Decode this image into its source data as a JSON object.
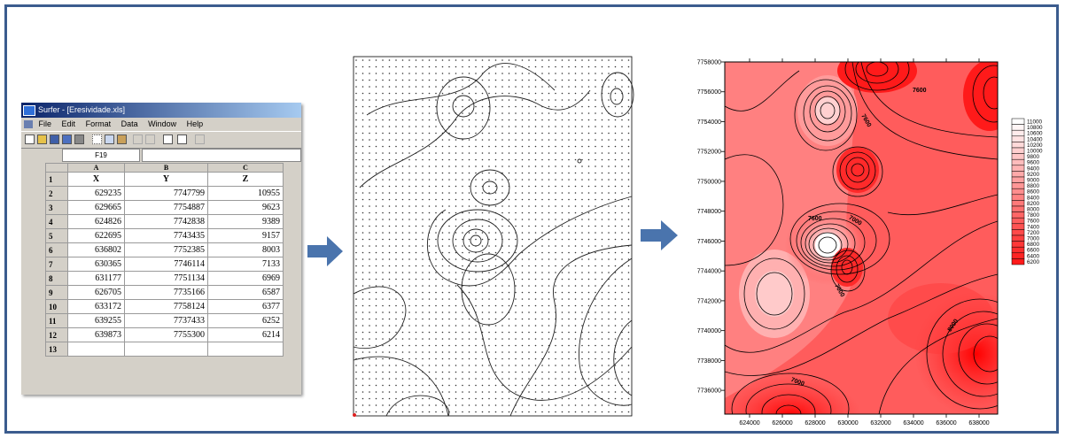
{
  "colors": {
    "frame": "#3b5c8e",
    "arrow": "#4a74ad",
    "contour_fill_low": "#ff1a1a",
    "contour_fill_high": "#ffffff"
  },
  "spreadsheet": {
    "window_title": "Surfer - [Eresividade.xls]",
    "menu": [
      "File",
      "Edit",
      "Format",
      "Data",
      "Window",
      "Help"
    ],
    "cell_ref": "F19",
    "columns": [
      "A",
      "B",
      "C"
    ],
    "headers": [
      "X",
      "Y",
      "Z"
    ],
    "rows": [
      {
        "n": "2",
        "x": "629235",
        "y": "7747799",
        "z": "10955"
      },
      {
        "n": "3",
        "x": "629665",
        "y": "7754887",
        "z": "9623"
      },
      {
        "n": "4",
        "x": "624826",
        "y": "7742838",
        "z": "9389"
      },
      {
        "n": "5",
        "x": "622695",
        "y": "7743435",
        "z": "9157"
      },
      {
        "n": "6",
        "x": "636802",
        "y": "7752385",
        "z": "8003"
      },
      {
        "n": "7",
        "x": "630365",
        "y": "7746114",
        "z": "7133"
      },
      {
        "n": "8",
        "x": "631177",
        "y": "7751134",
        "z": "6969"
      },
      {
        "n": "9",
        "x": "626705",
        "y": "7735166",
        "z": "6587"
      },
      {
        "n": "10",
        "x": "633172",
        "y": "7758124",
        "z": "6377"
      },
      {
        "n": "11",
        "x": "639255",
        "y": "7737433",
        "z": "6252"
      },
      {
        "n": "12",
        "x": "639873",
        "y": "7755300",
        "z": "6214"
      }
    ],
    "row_labels": [
      "1",
      "13"
    ]
  },
  "map": {
    "y_ticks": [
      "7758000",
      "7756000",
      "7754000",
      "7752000",
      "7750000",
      "7748000",
      "7746000",
      "7744000",
      "7742000",
      "7740000",
      "7738000",
      "7736000"
    ],
    "x_ticks": [
      "624000",
      "626000",
      "628000",
      "630000",
      "632000",
      "634000",
      "636000",
      "638000"
    ],
    "contour_labels": [
      "7600",
      "7600",
      "7600",
      "7000",
      "7000",
      "8000",
      "7000"
    ]
  },
  "legend": {
    "values": [
      "11000",
      "10800",
      "10600",
      "10400",
      "10200",
      "10000",
      "9800",
      "9600",
      "9400",
      "9200",
      "9000",
      "8800",
      "8600",
      "8400",
      "8200",
      "8000",
      "7800",
      "7600",
      "7400",
      "7200",
      "7000",
      "6800",
      "6600",
      "6400",
      "6200"
    ]
  }
}
